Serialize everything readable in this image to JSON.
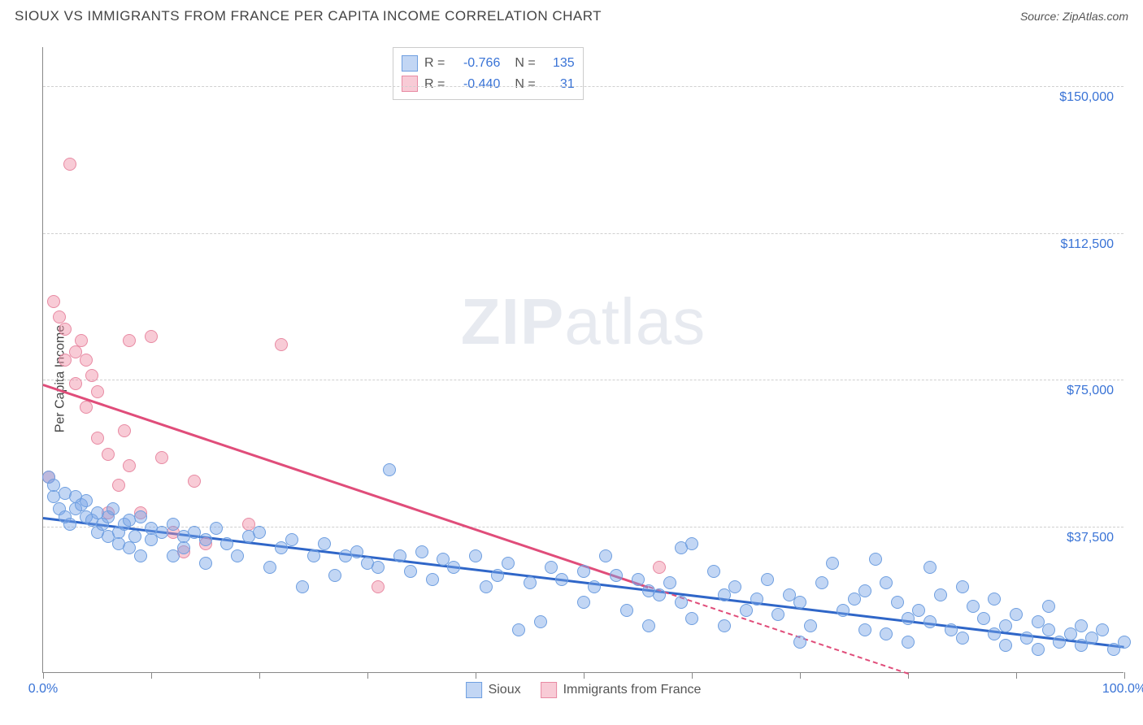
{
  "header": {
    "title": "SIOUX VS IMMIGRANTS FROM FRANCE PER CAPITA INCOME CORRELATION CHART",
    "source_prefix": "Source: ",
    "source_name": "ZipAtlas.com"
  },
  "y_axis_label": "Per Capita Income",
  "watermark": {
    "bold": "ZIP",
    "rest": "atlas"
  },
  "chart": {
    "type": "scatter",
    "xlim": [
      0,
      100
    ],
    "ylim": [
      0,
      160000
    ],
    "y_ticks": [
      {
        "v": 37500,
        "label": "$37,500"
      },
      {
        "v": 75000,
        "label": "$75,000"
      },
      {
        "v": 112500,
        "label": "$112,500"
      },
      {
        "v": 150000,
        "label": "$150,000"
      }
    ],
    "x_ticks_minor": [
      0,
      10,
      20,
      30,
      40,
      50,
      60,
      70,
      80,
      90,
      100
    ],
    "x_tick_labels": [
      {
        "v": 0,
        "label": "0.0%"
      },
      {
        "v": 100,
        "label": "100.0%"
      }
    ],
    "grid_color": "#d0d0d0",
    "axis_color": "#888888",
    "background_color": "#ffffff",
    "tick_label_color": "#3973d6",
    "series": [
      {
        "name": "Sioux",
        "fill": "rgba(120,165,230,0.45)",
        "stroke": "#6f9fe0",
        "radius": 8,
        "trend": {
          "x1": 0,
          "y1": 40000,
          "x2": 100,
          "y2": 7000,
          "color": "#2f66c8",
          "dash_after_x": null
        },
        "points": [
          [
            0.5,
            50000
          ],
          [
            1,
            45000
          ],
          [
            1,
            48000
          ],
          [
            1.5,
            42000
          ],
          [
            2,
            46000
          ],
          [
            2,
            40000
          ],
          [
            2.5,
            38000
          ],
          [
            3,
            42000
          ],
          [
            3,
            45000
          ],
          [
            3.5,
            43000
          ],
          [
            4,
            40000
          ],
          [
            4,
            44000
          ],
          [
            4.5,
            39000
          ],
          [
            5,
            41000
          ],
          [
            5,
            36000
          ],
          [
            5.5,
            38000
          ],
          [
            6,
            40000
          ],
          [
            6,
            35000
          ],
          [
            6.5,
            42000
          ],
          [
            7,
            36000
          ],
          [
            7,
            33000
          ],
          [
            7.5,
            38000
          ],
          [
            8,
            39000
          ],
          [
            8,
            32000
          ],
          [
            8.5,
            35000
          ],
          [
            9,
            40000
          ],
          [
            9,
            30000
          ],
          [
            10,
            37000
          ],
          [
            10,
            34000
          ],
          [
            11,
            36000
          ],
          [
            12,
            38000
          ],
          [
            12,
            30000
          ],
          [
            13,
            35000
          ],
          [
            13,
            32000
          ],
          [
            14,
            36000
          ],
          [
            15,
            34000
          ],
          [
            15,
            28000
          ],
          [
            16,
            37000
          ],
          [
            17,
            33000
          ],
          [
            18,
            30000
          ],
          [
            19,
            35000
          ],
          [
            20,
            36000
          ],
          [
            21,
            27000
          ],
          [
            22,
            32000
          ],
          [
            23,
            34000
          ],
          [
            24,
            22000
          ],
          [
            25,
            30000
          ],
          [
            26,
            33000
          ],
          [
            27,
            25000
          ],
          [
            28,
            30000
          ],
          [
            29,
            31000
          ],
          [
            30,
            28000
          ],
          [
            31,
            27000
          ],
          [
            32,
            52000
          ],
          [
            33,
            30000
          ],
          [
            34,
            26000
          ],
          [
            35,
            31000
          ],
          [
            36,
            24000
          ],
          [
            37,
            29000
          ],
          [
            38,
            27000
          ],
          [
            40,
            30000
          ],
          [
            41,
            22000
          ],
          [
            42,
            25000
          ],
          [
            43,
            28000
          ],
          [
            44,
            11000
          ],
          [
            45,
            23000
          ],
          [
            46,
            13000
          ],
          [
            47,
            27000
          ],
          [
            48,
            24000
          ],
          [
            50,
            26000
          ],
          [
            50,
            18000
          ],
          [
            51,
            22000
          ],
          [
            52,
            30000
          ],
          [
            53,
            25000
          ],
          [
            54,
            16000
          ],
          [
            55,
            24000
          ],
          [
            56,
            21000
          ],
          [
            56,
            12000
          ],
          [
            57,
            20000
          ],
          [
            58,
            23000
          ],
          [
            59,
            32000
          ],
          [
            59,
            18000
          ],
          [
            60,
            14000
          ],
          [
            60,
            33000
          ],
          [
            62,
            26000
          ],
          [
            63,
            20000
          ],
          [
            63,
            12000
          ],
          [
            64,
            22000
          ],
          [
            65,
            16000
          ],
          [
            66,
            19000
          ],
          [
            67,
            24000
          ],
          [
            68,
            15000
          ],
          [
            69,
            20000
          ],
          [
            70,
            18000
          ],
          [
            70,
            8000
          ],
          [
            71,
            12000
          ],
          [
            72,
            23000
          ],
          [
            73,
            28000
          ],
          [
            74,
            16000
          ],
          [
            75,
            19000
          ],
          [
            76,
            21000
          ],
          [
            76,
            11000
          ],
          [
            77,
            29000
          ],
          [
            78,
            23000
          ],
          [
            78,
            10000
          ],
          [
            79,
            18000
          ],
          [
            80,
            14000
          ],
          [
            80,
            8000
          ],
          [
            81,
            16000
          ],
          [
            82,
            13000
          ],
          [
            82,
            27000
          ],
          [
            83,
            20000
          ],
          [
            84,
            11000
          ],
          [
            85,
            22000
          ],
          [
            85,
            9000
          ],
          [
            86,
            17000
          ],
          [
            87,
            14000
          ],
          [
            88,
            10000
          ],
          [
            88,
            19000
          ],
          [
            89,
            12000
          ],
          [
            89,
            7000
          ],
          [
            90,
            15000
          ],
          [
            91,
            9000
          ],
          [
            92,
            13000
          ],
          [
            92,
            6000
          ],
          [
            93,
            11000
          ],
          [
            93,
            17000
          ],
          [
            94,
            8000
          ],
          [
            95,
            10000
          ],
          [
            96,
            7000
          ],
          [
            96,
            12000
          ],
          [
            97,
            9000
          ],
          [
            98,
            11000
          ],
          [
            99,
            6000
          ],
          [
            100,
            8000
          ]
        ]
      },
      {
        "name": "Immigrants from France",
        "fill": "rgba(240,140,165,0.45)",
        "stroke": "#e88aa3",
        "radius": 8,
        "trend": {
          "x1": 0,
          "y1": 74000,
          "x2": 80,
          "y2": 0,
          "color": "#e04d7a",
          "dash_after_x": 56
        },
        "points": [
          [
            0.5,
            50000
          ],
          [
            1,
            95000
          ],
          [
            1.5,
            91000
          ],
          [
            2,
            80000
          ],
          [
            2,
            88000
          ],
          [
            2.5,
            130000
          ],
          [
            3,
            82000
          ],
          [
            3,
            74000
          ],
          [
            3.5,
            85000
          ],
          [
            4,
            68000
          ],
          [
            4,
            80000
          ],
          [
            4.5,
            76000
          ],
          [
            5,
            60000
          ],
          [
            5,
            72000
          ],
          [
            6,
            56000
          ],
          [
            6,
            41000
          ],
          [
            7,
            48000
          ],
          [
            7.5,
            62000
          ],
          [
            8,
            85000
          ],
          [
            8,
            53000
          ],
          [
            9,
            41000
          ],
          [
            10,
            86000
          ],
          [
            11,
            55000
          ],
          [
            12,
            36000
          ],
          [
            13,
            31000
          ],
          [
            14,
            49000
          ],
          [
            15,
            33000
          ],
          [
            19,
            38000
          ],
          [
            22,
            84000
          ],
          [
            31,
            22000
          ],
          [
            57,
            27000
          ]
        ]
      }
    ]
  },
  "legend_top": {
    "rows": [
      {
        "swatch_fill": "rgba(120,165,230,0.45)",
        "swatch_stroke": "#6f9fe0",
        "r_label": "R =",
        "r_value": "-0.766",
        "n_label": "N =",
        "n_value": "135"
      },
      {
        "swatch_fill": "rgba(240,140,165,0.45)",
        "swatch_stroke": "#e88aa3",
        "r_label": "R =",
        "r_value": "-0.440",
        "n_label": "N =",
        "n_value": "31"
      }
    ]
  },
  "legend_bottom": {
    "items": [
      {
        "swatch_fill": "rgba(120,165,230,0.45)",
        "swatch_stroke": "#6f9fe0",
        "label": "Sioux"
      },
      {
        "swatch_fill": "rgba(240,140,165,0.45)",
        "swatch_stroke": "#e88aa3",
        "label": "Immigrants from France"
      }
    ]
  }
}
